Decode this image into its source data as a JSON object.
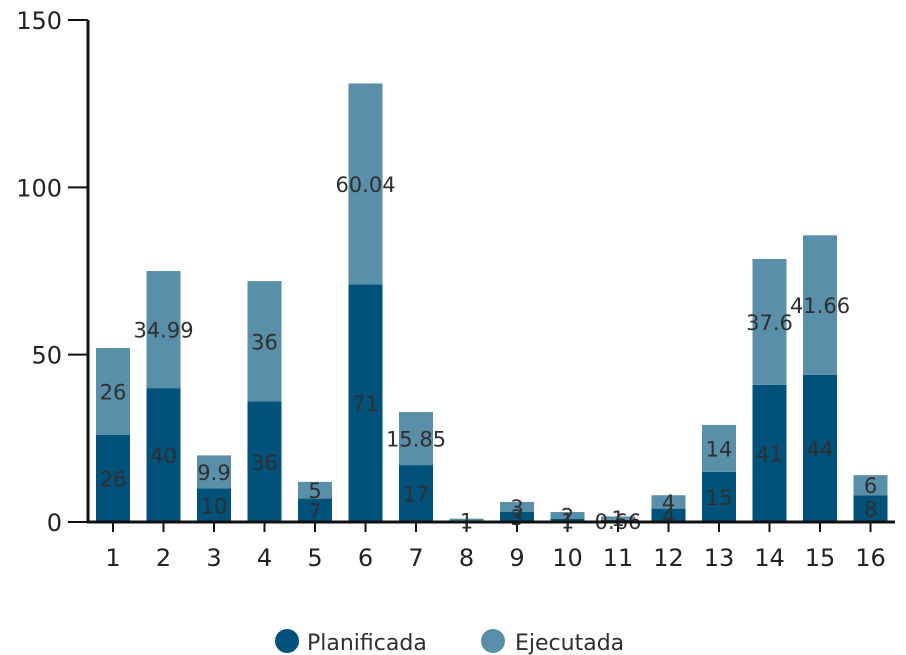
{
  "colors": {
    "planificada": "#00527a",
    "ejecutada": "#5a8fa9",
    "axis": "#111111"
  },
  "chart_data": {
    "type": "bar",
    "stacked": true,
    "categories": [
      "1",
      "2",
      "3",
      "4",
      "5",
      "6",
      "7",
      "8",
      "9",
      "10",
      "11",
      "12",
      "13",
      "14",
      "15",
      "16"
    ],
    "series": [
      {
        "name": "Planificada",
        "values": [
          26,
          40,
          10,
          36,
          7,
          71,
          17,
          0,
          3,
          1,
          0.66,
          4,
          15,
          41,
          44,
          8
        ],
        "labels": [
          "26",
          "40",
          "10",
          "36",
          "7",
          "71",
          "17",
          "",
          "3",
          "1",
          "0.66",
          "4",
          "15",
          "41",
          "44",
          "8"
        ]
      },
      {
        "name": "Ejecutada",
        "values": [
          26,
          34.99,
          9.9,
          36,
          5,
          60.04,
          15.85,
          1,
          3,
          2,
          1,
          4,
          14,
          37.6,
          41.66,
          6
        ],
        "labels": [
          "26",
          "34.99",
          "9.9",
          "36",
          "5",
          "60.04",
          "15.85",
          "1",
          "3",
          "2",
          "1",
          "4",
          "14",
          "37.6",
          "41.66",
          "6"
        ]
      }
    ],
    "yticks": [
      "0",
      "50",
      "100",
      "150"
    ],
    "ylim": [
      0,
      150
    ],
    "grid": false,
    "legend": "bottom-center",
    "title": "",
    "xlabel": "",
    "ylabel": ""
  }
}
